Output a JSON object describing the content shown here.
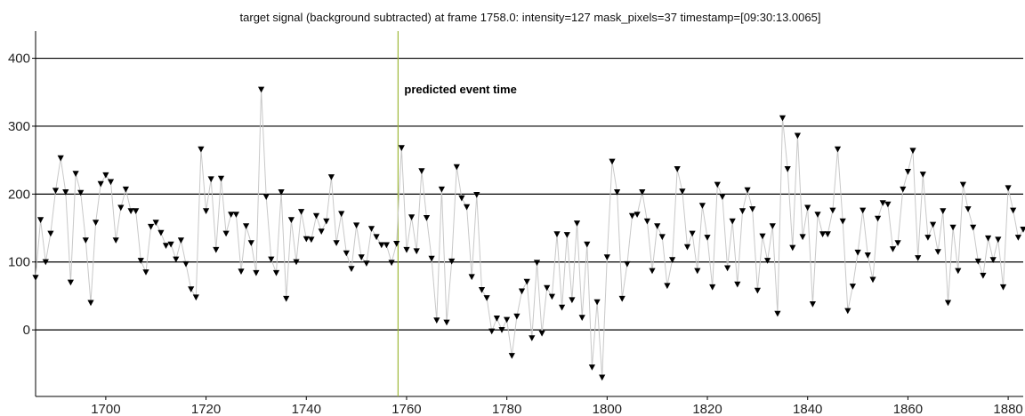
{
  "chart_data": {
    "type": "line",
    "title": "target signal (background subtracted) at frame 1758.0: intensity=127 mask_pixels=37 timestamp=[09:30:13.0065]",
    "xlabel": "",
    "ylabel": "",
    "xlim": [
      1686,
      1883
    ],
    "ylim": [
      -98,
      440
    ],
    "xticks": [
      1700,
      1720,
      1740,
      1760,
      1780,
      1800,
      1820,
      1840,
      1860,
      1880
    ],
    "yticks": [
      0,
      100,
      200,
      300,
      400
    ],
    "grid": "horizontal",
    "marker": "down-triangle",
    "colors": {
      "line": "#c8c8c8",
      "marker": "#000000",
      "event": "#9fb83a",
      "grid": "#000000"
    },
    "event_line": {
      "x": 1758.3,
      "label": "predicted event time"
    },
    "series": [
      {
        "x": [
          1686,
          1687,
          1688,
          1689,
          1690,
          1691,
          1692,
          1693,
          1694,
          1695,
          1696,
          1697,
          1698,
          1699,
          1700,
          1701,
          1702,
          1703,
          1704,
          1705,
          1706,
          1707,
          1708,
          1709,
          1710,
          1711,
          1712,
          1713,
          1714,
          1715,
          1716,
          1717,
          1718,
          1719,
          1720,
          1721,
          1722,
          1723,
          1724,
          1725,
          1726,
          1727,
          1728,
          1729,
          1730,
          1731,
          1732,
          1733,
          1734,
          1735,
          1736,
          1737,
          1738,
          1739,
          1740,
          1741,
          1742,
          1743,
          1744,
          1745,
          1746,
          1747,
          1748,
          1749,
          1750,
          1751,
          1752,
          1753,
          1754,
          1755,
          1756,
          1757,
          1758,
          1759,
          1760,
          1761,
          1762,
          1763,
          1764,
          1765,
          1766,
          1767,
          1768,
          1769,
          1770,
          1771,
          1772,
          1773,
          1774,
          1775,
          1776,
          1777,
          1778,
          1779,
          1780,
          1781,
          1782,
          1783,
          1784,
          1785,
          1786,
          1787,
          1788,
          1789,
          1790,
          1791,
          1792,
          1793,
          1794,
          1795,
          1796,
          1797,
          1798,
          1799,
          1800,
          1801,
          1802,
          1803,
          1804,
          1805,
          1806,
          1807,
          1808,
          1809,
          1810,
          1811,
          1812,
          1813,
          1814,
          1815,
          1816,
          1817,
          1818,
          1819,
          1820,
          1821,
          1822,
          1823,
          1824,
          1825,
          1826,
          1827,
          1828,
          1829,
          1830,
          1831,
          1832,
          1833,
          1834,
          1835,
          1836,
          1837,
          1838,
          1839,
          1840,
          1841,
          1842,
          1843,
          1844,
          1845,
          1846,
          1847,
          1848,
          1849,
          1850,
          1851,
          1852,
          1853,
          1854,
          1855,
          1856,
          1857,
          1858,
          1859,
          1860,
          1861,
          1862,
          1863,
          1864,
          1865,
          1866,
          1867,
          1868,
          1869,
          1870,
          1871,
          1872,
          1873,
          1874,
          1875,
          1876,
          1877,
          1878,
          1879,
          1880,
          1881,
          1882,
          1883
        ],
        "values": [
          77,
          162,
          100,
          142,
          205,
          253,
          203,
          70,
          230,
          202,
          132,
          40,
          158,
          215,
          228,
          218,
          132,
          180,
          207,
          175,
          175,
          102,
          85,
          152,
          158,
          143,
          124,
          126,
          104,
          132,
          97,
          60,
          48,
          266,
          175,
          222,
          118,
          223,
          142,
          170,
          170,
          86,
          153,
          128,
          84,
          354,
          196,
          104,
          84,
          203,
          46,
          162,
          100,
          174,
          134,
          133,
          168,
          145,
          160,
          225,
          128,
          171,
          113,
          90,
          154,
          107,
          98,
          149,
          137,
          125,
          125,
          99,
          127,
          268,
          118,
          166,
          116,
          234,
          165,
          105,
          14,
          207,
          11,
          101,
          240,
          194,
          181,
          78,
          199,
          59,
          47,
          -2,
          17,
          0,
          15,
          -38,
          20,
          57,
          71,
          -12,
          99,
          -5,
          62,
          49,
          141,
          33,
          140,
          44,
          157,
          18,
          126,
          -55,
          41,
          -70,
          107,
          248,
          203,
          46,
          97,
          168,
          170,
          203,
          160,
          87,
          153,
          137,
          65,
          103,
          237,
          204,
          122,
          142,
          87,
          183,
          136,
          63,
          214,
          196,
          91,
          160,
          67,
          175,
          206,
          178,
          58,
          138,
          102,
          153,
          24,
          312,
          237,
          121,
          286,
          137,
          180,
          38,
          170,
          141,
          141,
          176,
          266,
          160,
          28,
          64,
          114,
          176,
          110,
          74,
          164,
          187,
          185,
          119,
          128,
          207,
          233,
          264,
          106,
          229,
          136,
          155,
          115,
          175,
          40,
          151,
          87,
          214,
          178,
          151,
          101,
          80,
          135,
          103,
          133,
          63,
          209,
          176,
          136,
          148
        ]
      }
    ]
  }
}
